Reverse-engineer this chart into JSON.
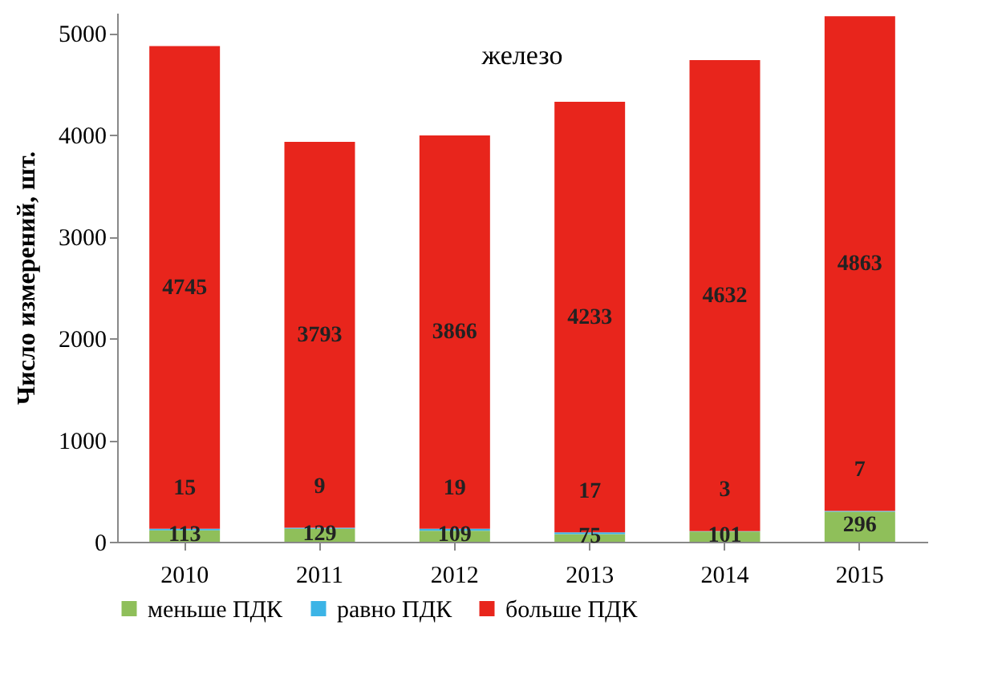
{
  "chart_data": {
    "type": "bar",
    "title": "железо",
    "ylabel": "Число измерений, шт.",
    "stacked": true,
    "categories": [
      "2010",
      "2011",
      "2012",
      "2013",
      "2014",
      "2015"
    ],
    "series": [
      {
        "name": "меньше ПДК",
        "color": "#8fbf5a",
        "values": [
          113,
          129,
          109,
          75,
          101,
          296
        ]
      },
      {
        "name": "равно ПДК",
        "color": "#3cb4e6",
        "values": [
          15,
          9,
          19,
          17,
          3,
          7
        ]
      },
      {
        "name": "больше ПДК",
        "color": "#e8251c",
        "values": [
          4745,
          3793,
          3866,
          4233,
          4632,
          4863
        ]
      }
    ],
    "ylim": [
      0,
      5200
    ],
    "yticks": [
      0,
      1000,
      2000,
      3000,
      4000,
      5000
    ],
    "grid": false,
    "legend": "bottom",
    "data_labels": true
  }
}
